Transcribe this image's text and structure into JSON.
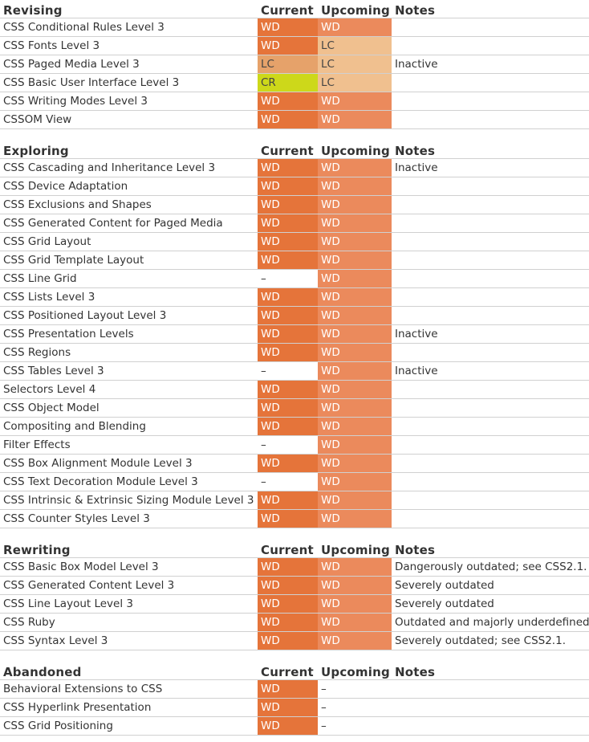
{
  "columns": {
    "current": "Current",
    "upcoming": "Upcoming",
    "notes": "Notes"
  },
  "sections": [
    {
      "title": "Revising",
      "rows": [
        {
          "name": "CSS Conditional Rules Level 3",
          "current": "WD",
          "upcoming": "WD",
          "notes": ""
        },
        {
          "name": "CSS Fonts Level 3",
          "current": "WD",
          "upcoming": "LC",
          "notes": ""
        },
        {
          "name": "CSS Paged Media Level 3",
          "current": "LC",
          "upcoming": "LC",
          "notes": "Inactive"
        },
        {
          "name": "CSS Basic User Interface Level 3",
          "current": "CR",
          "upcoming": "LC",
          "notes": ""
        },
        {
          "name": "CSS Writing Modes Level 3",
          "current": "WD",
          "upcoming": "WD",
          "notes": ""
        },
        {
          "name": "CSSOM View",
          "current": "WD",
          "upcoming": "WD",
          "notes": ""
        }
      ]
    },
    {
      "title": "Exploring",
      "rows": [
        {
          "name": "CSS Cascading and Inheritance Level 3",
          "current": "WD",
          "upcoming": "WD",
          "notes": "Inactive"
        },
        {
          "name": "CSS Device Adaptation",
          "current": "WD",
          "upcoming": "WD",
          "notes": ""
        },
        {
          "name": "CSS Exclusions and Shapes",
          "current": "WD",
          "upcoming": "WD",
          "notes": ""
        },
        {
          "name": "CSS Generated Content for Paged Media",
          "current": "WD",
          "upcoming": "WD",
          "notes": ""
        },
        {
          "name": "CSS Grid Layout",
          "current": "WD",
          "upcoming": "WD",
          "notes": ""
        },
        {
          "name": "CSS Grid Template Layout",
          "current": "WD",
          "upcoming": "WD",
          "notes": ""
        },
        {
          "name": "CSS Line Grid",
          "current": "–",
          "upcoming": "WD",
          "notes": ""
        },
        {
          "name": "CSS Lists Level 3",
          "current": "WD",
          "upcoming": "WD",
          "notes": ""
        },
        {
          "name": "CSS Positioned Layout Level 3",
          "current": "WD",
          "upcoming": "WD",
          "notes": ""
        },
        {
          "name": "CSS Presentation Levels",
          "current": "WD",
          "upcoming": "WD",
          "notes": "Inactive"
        },
        {
          "name": "CSS Regions",
          "current": "WD",
          "upcoming": "WD",
          "notes": ""
        },
        {
          "name": "CSS Tables Level 3",
          "current": "–",
          "upcoming": "WD",
          "notes": "Inactive"
        },
        {
          "name": "Selectors Level 4",
          "current": "WD",
          "upcoming": "WD",
          "notes": ""
        },
        {
          "name": "CSS Object Model",
          "current": "WD",
          "upcoming": "WD",
          "notes": ""
        },
        {
          "name": "Compositing and Blending",
          "current": "WD",
          "upcoming": "WD",
          "notes": ""
        },
        {
          "name": "Filter Effects",
          "current": "–",
          "upcoming": "WD",
          "notes": ""
        },
        {
          "name": "CSS Box Alignment Module Level 3",
          "current": "WD",
          "upcoming": "WD",
          "notes": ""
        },
        {
          "name": "CSS Text Decoration Module Level 3",
          "current": "–",
          "upcoming": "WD",
          "notes": ""
        },
        {
          "name": "CSS Intrinsic & Extrinsic Sizing Module Level 3",
          "current": "WD",
          "upcoming": "WD",
          "notes": ""
        },
        {
          "name": "CSS Counter Styles Level 3",
          "current": "WD",
          "upcoming": "WD",
          "notes": ""
        }
      ]
    },
    {
      "title": "Rewriting",
      "rows": [
        {
          "name": "CSS Basic Box Model Level 3",
          "current": "WD",
          "upcoming": "WD",
          "notes": "Dangerously outdated; see CSS2.1."
        },
        {
          "name": "CSS Generated Content Level 3",
          "current": "WD",
          "upcoming": "WD",
          "notes": "Severely outdated"
        },
        {
          "name": "CSS Line Layout Level 3",
          "current": "WD",
          "upcoming": "WD",
          "notes": "Severely outdated"
        },
        {
          "name": "CSS Ruby",
          "current": "WD",
          "upcoming": "WD",
          "notes": "Outdated and majorly underdefined"
        },
        {
          "name": "CSS Syntax Level 3",
          "current": "WD",
          "upcoming": "WD",
          "notes": "Severely outdated; see CSS2.1."
        }
      ]
    },
    {
      "title": "Abandoned",
      "rows": [
        {
          "name": "Behavioral Extensions to CSS",
          "current": "WD",
          "upcoming": "–",
          "notes": ""
        },
        {
          "name": "CSS Hyperlink Presentation",
          "current": "WD",
          "upcoming": "–",
          "notes": ""
        },
        {
          "name": "CSS Grid Positioning",
          "current": "WD",
          "upcoming": "–",
          "notes": ""
        }
      ]
    }
  ]
}
